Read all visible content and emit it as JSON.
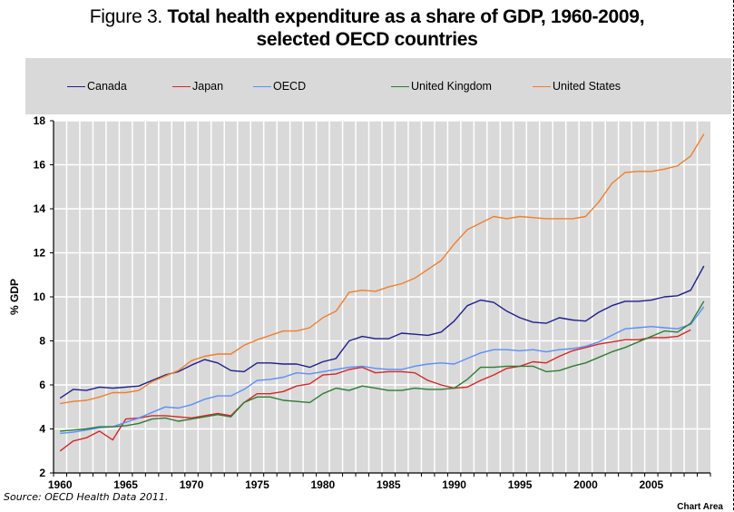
{
  "title": {
    "lead": "Figure 3.",
    "line1": "Total health expenditure as a share of GDP, 1960-2009,",
    "line2": "selected OECD countries"
  },
  "source": "Source: OECD Health Data 2011.",
  "chart_area_label": "Chart Area",
  "chart_data": {
    "type": "line",
    "title": "Figure 3. Total health expenditure as a share of GDP, 1960-2009, selected OECD countries",
    "xlabel": "",
    "ylabel": "% GDP",
    "ylim": [
      2,
      18
    ],
    "yticks": [
      2,
      4,
      6,
      8,
      10,
      12,
      14,
      16,
      18
    ],
    "xtick_labels": [
      "1960",
      "1965",
      "1970",
      "1975",
      "1980",
      "1985",
      "1990",
      "1995",
      "2000",
      "2005"
    ],
    "grid": true,
    "legend_position": "top",
    "x": [
      1960,
      1961,
      1962,
      1963,
      1964,
      1965,
      1966,
      1967,
      1968,
      1969,
      1970,
      1971,
      1972,
      1973,
      1974,
      1975,
      1976,
      1977,
      1978,
      1979,
      1980,
      1981,
      1982,
      1983,
      1984,
      1985,
      1986,
      1987,
      1988,
      1989,
      1990,
      1991,
      1992,
      1993,
      1994,
      1995,
      1996,
      1997,
      1998,
      1999,
      2000,
      2001,
      2002,
      2003,
      2004,
      2005,
      2006,
      2007,
      2008,
      2009
    ],
    "series": [
      {
        "name": "Canada",
        "color": "#1f1f8f",
        "values": [
          5.4,
          5.8,
          5.75,
          5.9,
          5.85,
          5.9,
          5.95,
          6.2,
          6.45,
          6.6,
          6.9,
          7.15,
          7.0,
          6.65,
          6.6,
          7.0,
          7.0,
          6.95,
          6.95,
          6.8,
          7.05,
          7.2,
          8.0,
          8.2,
          8.1,
          8.1,
          8.35,
          8.3,
          8.25,
          8.4,
          8.9,
          9.6,
          9.85,
          9.75,
          9.35,
          9.05,
          8.85,
          8.8,
          9.05,
          8.95,
          8.9,
          9.3,
          9.6,
          9.8,
          9.8,
          9.85,
          10.0,
          10.05,
          10.3,
          11.4
        ]
      },
      {
        "name": "Japan",
        "color": "#d62728",
        "values": [
          3.0,
          3.45,
          3.6,
          3.9,
          3.5,
          4.45,
          4.5,
          4.6,
          4.6,
          4.55,
          4.5,
          4.6,
          4.7,
          4.6,
          5.2,
          5.6,
          5.6,
          5.7,
          5.95,
          6.05,
          6.45,
          6.5,
          6.7,
          6.8,
          6.55,
          6.6,
          6.6,
          6.55,
          6.2,
          6.0,
          5.85,
          5.9,
          6.2,
          6.45,
          6.75,
          6.85,
          7.05,
          7.0,
          7.3,
          7.55,
          7.7,
          7.85,
          7.95,
          8.05,
          8.05,
          8.15,
          8.15,
          8.2,
          8.5,
          null
        ]
      },
      {
        "name": "OECD",
        "color": "#5b8ff9",
        "values": [
          3.8,
          3.85,
          3.95,
          4.05,
          4.1,
          4.3,
          4.5,
          4.75,
          5.0,
          4.95,
          5.1,
          5.35,
          5.5,
          5.5,
          5.8,
          6.2,
          6.25,
          6.35,
          6.55,
          6.5,
          6.6,
          6.7,
          6.8,
          6.85,
          6.75,
          6.7,
          6.7,
          6.85,
          6.95,
          7.0,
          6.95,
          7.2,
          7.45,
          7.6,
          7.6,
          7.55,
          7.6,
          7.5,
          7.6,
          7.65,
          7.75,
          7.95,
          8.25,
          8.55,
          8.6,
          8.65,
          8.6,
          8.55,
          8.75,
          9.55
        ]
      },
      {
        "name": "United Kingdom",
        "color": "#2e7d32",
        "values": [
          3.9,
          3.95,
          4.0,
          4.1,
          4.1,
          4.15,
          4.25,
          4.45,
          4.5,
          4.35,
          4.45,
          4.55,
          4.65,
          4.55,
          5.2,
          5.45,
          5.45,
          5.3,
          5.25,
          5.2,
          5.6,
          5.85,
          5.75,
          5.95,
          5.85,
          5.75,
          5.75,
          5.85,
          5.8,
          5.8,
          5.85,
          6.25,
          6.8,
          6.8,
          6.85,
          6.85,
          6.85,
          6.6,
          6.65,
          6.85,
          7.0,
          7.25,
          7.5,
          7.7,
          7.95,
          8.2,
          8.45,
          8.4,
          8.8,
          9.8
        ]
      },
      {
        "name": "United States",
        "color": "#f07f2c",
        "values": [
          5.15,
          5.25,
          5.3,
          5.45,
          5.65,
          5.65,
          5.75,
          6.15,
          6.4,
          6.65,
          7.1,
          7.3,
          7.4,
          7.4,
          7.8,
          8.05,
          8.25,
          8.45,
          8.45,
          8.6,
          9.05,
          9.35,
          10.2,
          10.3,
          10.25,
          10.45,
          10.6,
          10.85,
          11.25,
          11.65,
          12.4,
          13.05,
          13.35,
          13.65,
          13.55,
          13.65,
          13.6,
          13.55,
          13.55,
          13.55,
          13.65,
          14.3,
          15.15,
          15.65,
          15.7,
          15.7,
          15.8,
          15.95,
          16.4,
          17.4
        ]
      }
    ]
  }
}
